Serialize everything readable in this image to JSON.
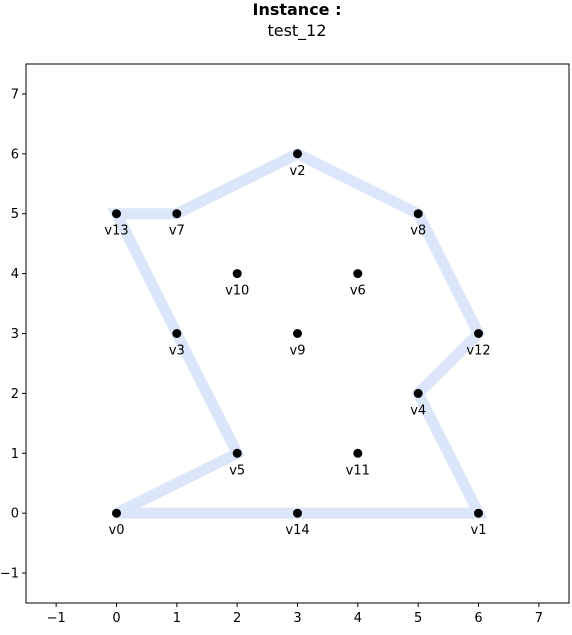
{
  "chart_data": {
    "type": "scatter",
    "title": "Instance :",
    "subtitle": "test_12",
    "xlabel": "",
    "ylabel": "",
    "xlim": [
      -1.5,
      7.5
    ],
    "ylim": [
      -1.5,
      7.5
    ],
    "xticks": [
      -1,
      0,
      1,
      2,
      3,
      4,
      5,
      6,
      7
    ],
    "yticks": [
      -1,
      0,
      1,
      2,
      3,
      4,
      5,
      6,
      7
    ],
    "xtick_labels": [
      "−1",
      "0",
      "1",
      "2",
      "3",
      "4",
      "5",
      "6",
      "7"
    ],
    "ytick_labels": [
      "−1",
      "0",
      "1",
      "2",
      "3",
      "4",
      "5",
      "6",
      "7"
    ],
    "grid": false,
    "points": [
      {
        "label": "v0",
        "x": 0,
        "y": 0
      },
      {
        "label": "v1",
        "x": 6,
        "y": 0
      },
      {
        "label": "v2",
        "x": 3,
        "y": 6
      },
      {
        "label": "v3",
        "x": 1,
        "y": 3
      },
      {
        "label": "v4",
        "x": 5,
        "y": 2
      },
      {
        "label": "v5",
        "x": 2,
        "y": 1
      },
      {
        "label": "v6",
        "x": 4,
        "y": 4
      },
      {
        "label": "v7",
        "x": 1,
        "y": 5
      },
      {
        "label": "v8",
        "x": 5,
        "y": 5
      },
      {
        "label": "v9",
        "x": 3,
        "y": 3
      },
      {
        "label": "v10",
        "x": 2,
        "y": 4
      },
      {
        "label": "v11",
        "x": 4,
        "y": 1
      },
      {
        "label": "v12",
        "x": 6,
        "y": 3
      },
      {
        "label": "v13",
        "x": 0,
        "y": 5
      },
      {
        "label": "v14",
        "x": 3,
        "y": 0
      }
    ],
    "tour": [
      "v0",
      "v14",
      "v1",
      "v4",
      "v12",
      "v8",
      "v2",
      "v7",
      "v13",
      "v3",
      "v5",
      "v0"
    ],
    "colors": {
      "tour": "#dce6fa",
      "point": "#000000",
      "axes": "#000000"
    }
  }
}
